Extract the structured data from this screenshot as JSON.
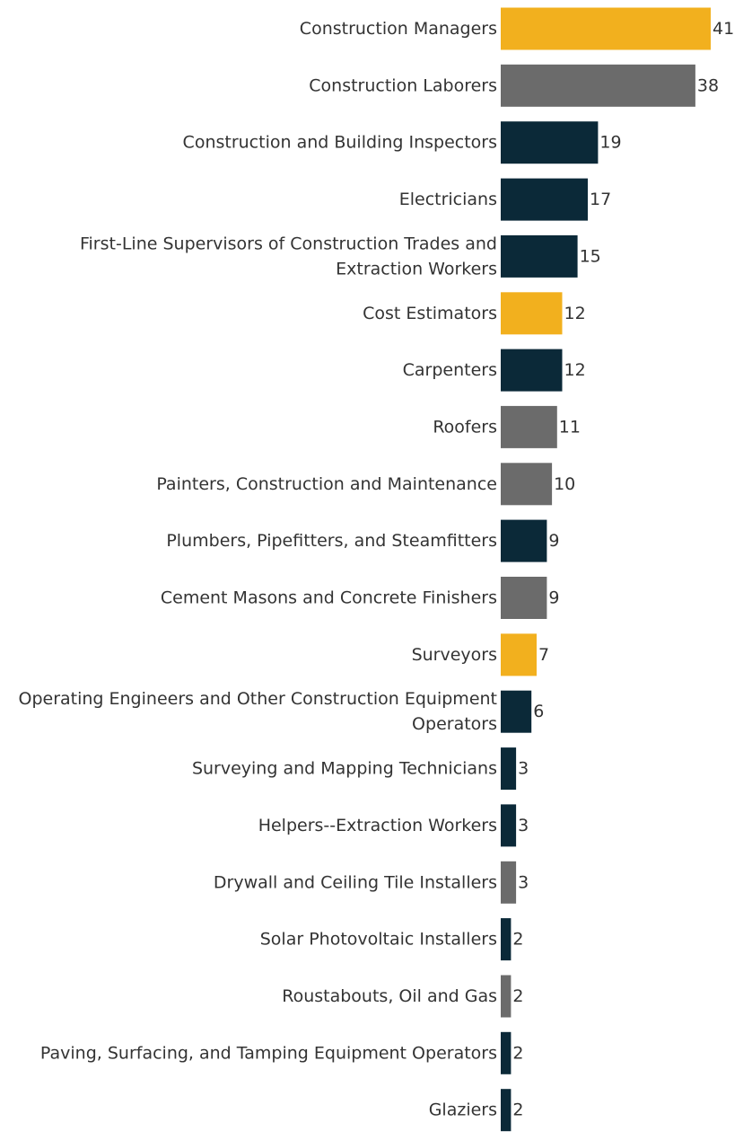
{
  "chart_data": {
    "type": "bar",
    "orientation": "horizontal",
    "title": "",
    "xlabel": "",
    "ylabel": "",
    "xlim": [
      0,
      41
    ],
    "grid": false,
    "categories": [
      [
        "Construction Managers"
      ],
      [
        "Construction Laborers"
      ],
      [
        "Construction and Building Inspectors"
      ],
      [
        "Electricians"
      ],
      [
        "First-Line Supervisors of Construction Trades and",
        "Extraction Workers"
      ],
      [
        "Cost Estimators"
      ],
      [
        "Carpenters"
      ],
      [
        "Roofers"
      ],
      [
        "Painters, Construction and Maintenance"
      ],
      [
        "Plumbers, Pipefitters, and Steamfitters"
      ],
      [
        "Cement Masons and Concrete Finishers"
      ],
      [
        "Surveyors"
      ],
      [
        "Operating Engineers and Other Construction Equipment",
        "Operators"
      ],
      [
        "Surveying and Mapping Technicians"
      ],
      [
        "Helpers--Extraction Workers"
      ],
      [
        "Drywall and Ceiling Tile Installers"
      ],
      [
        "Solar Photovoltaic Installers"
      ],
      [
        "Roustabouts, Oil and Gas"
      ],
      [
        "Paving, Surfacing, and Tamping Equipment Operators"
      ],
      [
        "Glaziers"
      ]
    ],
    "values": [
      41,
      38,
      19,
      17,
      15,
      12,
      12,
      11,
      10,
      9,
      9,
      7,
      6,
      3,
      3,
      3,
      2,
      2,
      2,
      2
    ],
    "bar_groups": [
      "gold",
      "gray",
      "navy",
      "navy",
      "navy",
      "gold",
      "navy",
      "gray",
      "gray",
      "navy",
      "gray",
      "gold",
      "navy",
      "navy",
      "navy",
      "gray",
      "navy",
      "gray",
      "navy",
      "navy"
    ],
    "colors": {
      "gold": "#f2b01e",
      "gray": "#6b6b6b",
      "navy": "#0b2938"
    }
  }
}
